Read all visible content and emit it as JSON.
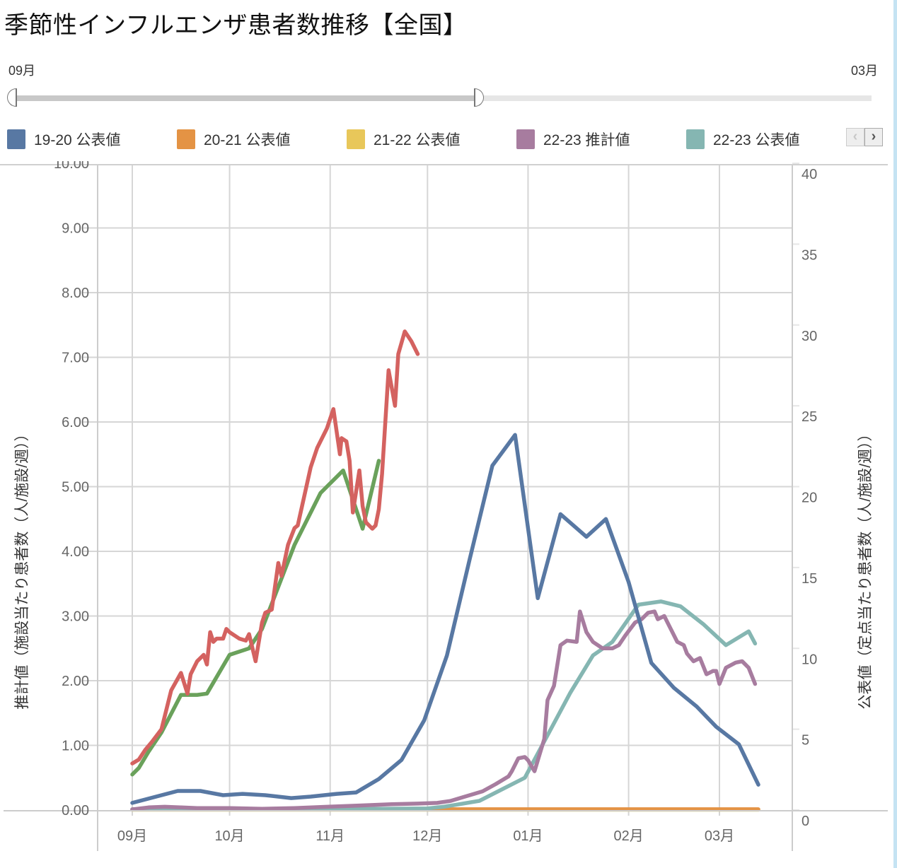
{
  "header": {
    "title": "季節性インフルエンザ患者数推移【全国】"
  },
  "range_slider": {
    "start_label": "09月",
    "end_label": "03月",
    "selected_fraction_end": 0.54
  },
  "legend": {
    "items": [
      {
        "label": "19-20 公表値",
        "color": "#5878a3"
      },
      {
        "label": "20-21 公表値",
        "color": "#e49344"
      },
      {
        "label": "21-22 公表値",
        "color": "#e8c75a"
      },
      {
        "label": "22-23 推計値",
        "color": "#a77c9f"
      },
      {
        "label": "22-23 公表値",
        "color": "#85b6b2"
      }
    ],
    "prev_icon": "chevron-left-icon",
    "next_icon": "chevron-right-icon"
  },
  "chart_data": {
    "type": "line",
    "title": "季節性インフルエンザ患者数推移【全国】",
    "x_unit": "days since Sep 1",
    "x_ticks": [
      {
        "day": 0,
        "label": "09月"
      },
      {
        "day": 30,
        "label": "10月"
      },
      {
        "day": 61,
        "label": "11月"
      },
      {
        "day": 91,
        "label": "12月"
      },
      {
        "day": 122,
        "label": "01月"
      },
      {
        "day": 153,
        "label": "02月"
      },
      {
        "day": 181,
        "label": "03月"
      }
    ],
    "xlim": [
      -11,
      203
    ],
    "y_left": {
      "label": "推計値（施設当たり患者数（人/施設/週））",
      "lim": [
        0,
        10
      ],
      "ticks": [
        "0.00",
        "1.00",
        "2.00",
        "3.00",
        "4.00",
        "5.00",
        "6.00",
        "7.00",
        "8.00",
        "9.00",
        "10.00"
      ],
      "tick_values": [
        0,
        1,
        2,
        3,
        4,
        5,
        6,
        7,
        8,
        9,
        10
      ]
    },
    "y_right": {
      "label": "公表値（定点当たり患者数（人/施設/週））",
      "lim": [
        0,
        40
      ],
      "ticks": [
        "0",
        "5",
        "10",
        "15",
        "20",
        "25",
        "30",
        "35",
        "40"
      ],
      "tick_values": [
        0,
        5,
        10,
        15,
        20,
        25,
        30,
        35,
        40
      ]
    },
    "grid": true,
    "legend_position": "top",
    "series": [
      {
        "name": "19-20 公表値",
        "axis": "right",
        "color": "#5878a3",
        "x": [
          0,
          14,
          21,
          28,
          34,
          41,
          49,
          55,
          63,
          69,
          76,
          83,
          90,
          97,
          104,
          111,
          118,
          125,
          132,
          140,
          146,
          153,
          160,
          167,
          174,
          180,
          187,
          193
        ],
        "y": [
          0.44,
          1.18,
          1.18,
          0.92,
          1.0,
          0.92,
          0.74,
          0.83,
          1.0,
          1.09,
          1.92,
          3.1,
          5.55,
          9.56,
          15.5,
          21.3,
          23.2,
          13.1,
          18.3,
          16.9,
          18.0,
          14.1,
          9.1,
          7.55,
          6.4,
          5.15,
          4.06,
          1.57
        ]
      },
      {
        "name": "20-21 公表値",
        "axis": "right",
        "color": "#e49344",
        "x": [
          0,
          30,
          61,
          91,
          122,
          153,
          181,
          193
        ],
        "y": [
          0.05,
          0.05,
          0.05,
          0.05,
          0.05,
          0.05,
          0.05,
          0.05
        ]
      },
      {
        "name": "21-22 公表値",
        "axis": "right",
        "color": "#e8c75a",
        "x": [
          0,
          193
        ],
        "y": [
          0.02,
          0.02
        ]
      },
      {
        "name": "22-23 推計値",
        "axis": "left",
        "color": "#a77c9f",
        "x": [
          0,
          5,
          10,
          15,
          20,
          30,
          40,
          50,
          60,
          70,
          80,
          88,
          94,
          98,
          102,
          106,
          108,
          112,
          116,
          117,
          119,
          121,
          122,
          124,
          127,
          128,
          130,
          132,
          134,
          137,
          138,
          140,
          142,
          145,
          148,
          150,
          152,
          155,
          157,
          159,
          161,
          162,
          164,
          166,
          168,
          170,
          171,
          173,
          175,
          177,
          179,
          180,
          181,
          183,
          186,
          188,
          190,
          192
        ],
        "y": [
          0.01,
          0.04,
          0.05,
          0.04,
          0.03,
          0.03,
          0.02,
          0.03,
          0.05,
          0.07,
          0.09,
          0.1,
          0.11,
          0.14,
          0.2,
          0.26,
          0.29,
          0.4,
          0.52,
          0.6,
          0.8,
          0.82,
          0.77,
          0.6,
          1.1,
          1.7,
          1.92,
          2.55,
          2.62,
          2.6,
          3.07,
          2.75,
          2.6,
          2.5,
          2.5,
          2.55,
          2.7,
          2.9,
          2.95,
          3.05,
          3.07,
          2.95,
          3.0,
          2.8,
          2.6,
          2.55,
          2.42,
          2.3,
          2.35,
          2.1,
          2.15,
          2.15,
          1.95,
          2.2,
          2.28,
          2.3,
          2.2,
          1.95
        ]
      },
      {
        "name": "22-23 公表値",
        "axis": "right",
        "color": "#85b6b2",
        "x": [
          0,
          30,
          61,
          91,
          96,
          107,
          121,
          135,
          142,
          148,
          156,
          163,
          169,
          176,
          183,
          190,
          192
        ],
        "y": [
          0.05,
          0.05,
          0.05,
          0.1,
          0.2,
          0.57,
          2.0,
          7.25,
          9.56,
          10.4,
          12.7,
          12.9,
          12.6,
          11.5,
          10.2,
          11.05,
          10.3
        ]
      },
      {
        "name": "",
        "axis": "left",
        "color": "#d46260",
        "x": [
          0,
          2,
          4,
          6,
          9,
          12,
          15,
          17,
          18,
          20,
          22,
          23,
          24,
          25,
          26,
          28,
          29,
          30,
          33,
          35,
          36,
          38,
          40,
          41,
          43,
          45,
          46,
          48,
          50,
          51,
          55,
          57,
          60,
          62,
          64,
          64.5,
          66,
          67,
          68,
          70,
          71,
          72,
          74,
          75,
          76,
          77,
          79,
          81,
          82,
          84,
          86,
          88
        ],
        "y": [
          0.72,
          0.78,
          0.93,
          1.05,
          1.25,
          1.85,
          2.12,
          1.8,
          2.1,
          2.3,
          2.4,
          2.25,
          2.75,
          2.6,
          2.65,
          2.65,
          2.8,
          2.75,
          2.65,
          2.62,
          2.72,
          2.3,
          2.9,
          3.05,
          3.1,
          3.82,
          3.62,
          4.1,
          4.36,
          4.4,
          5.3,
          5.6,
          5.9,
          6.2,
          5.5,
          5.75,
          5.7,
          5.4,
          4.6,
          5.25,
          4.7,
          4.45,
          4.35,
          4.4,
          4.65,
          5.2,
          6.8,
          6.25,
          7.05,
          7.4,
          7.25,
          7.05
        ]
      },
      {
        "name": "",
        "axis": "left",
        "color": "#6aa15b",
        "x": [
          0,
          2,
          5,
          9,
          15,
          20,
          23,
          30,
          36,
          40,
          50,
          58,
          65,
          71,
          76
        ],
        "y": [
          0.55,
          0.65,
          0.9,
          1.2,
          1.78,
          1.78,
          1.8,
          2.4,
          2.5,
          2.8,
          4.1,
          4.9,
          5.25,
          4.35,
          5.4
        ]
      }
    ]
  }
}
